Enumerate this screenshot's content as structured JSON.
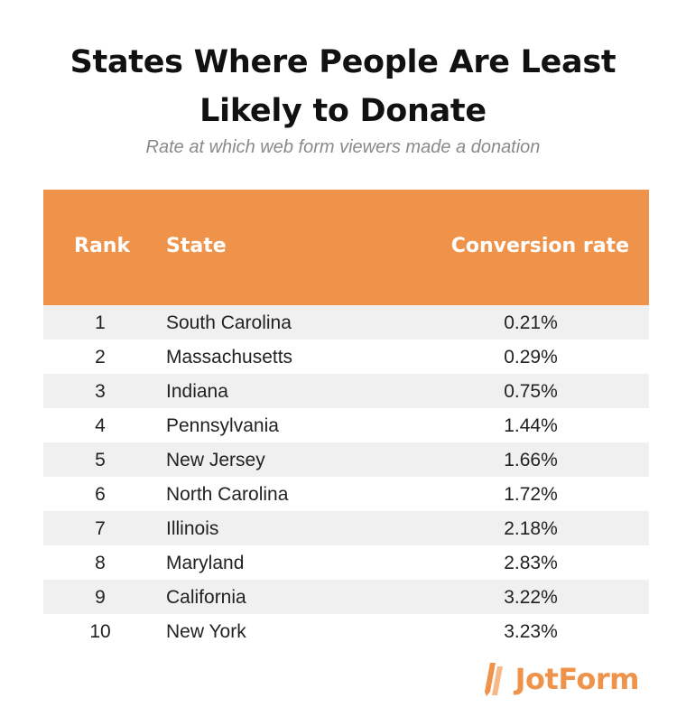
{
  "title_line1": "States Where People Are Least",
  "title_line2": "Likely to Donate",
  "subtitle": "Rate at which web form viewers made a donation",
  "chart_data": {
    "type": "table",
    "columns": [
      "Rank",
      "State",
      "Conversion rate"
    ],
    "rows": [
      {
        "rank": "1",
        "state": "South Carolina",
        "rate": "0.21%"
      },
      {
        "rank": "2",
        "state": "Massachusetts",
        "rate": "0.29%"
      },
      {
        "rank": "3",
        "state": "Indiana",
        "rate": "0.75%"
      },
      {
        "rank": "4",
        "state": "Pennsylvania",
        "rate": "1.44%"
      },
      {
        "rank": "5",
        "state": "New Jersey",
        "rate": "1.66%"
      },
      {
        "rank": "6",
        "state": "North Carolina",
        "rate": "1.72%"
      },
      {
        "rank": "7",
        "state": "Illinois",
        "rate": "2.18%"
      },
      {
        "rank": "8",
        "state": "Maryland",
        "rate": "2.83%"
      },
      {
        "rank": "9",
        "state": "California",
        "rate": "3.22%"
      },
      {
        "rank": "10",
        "state": "New York",
        "rate": "3.23%"
      }
    ]
  },
  "logo": {
    "text": "JotForm",
    "icon": "jotform-pencil-icon"
  },
  "colors": {
    "header": "#f0934a",
    "row_alt": "#f0f0f0",
    "subtitle": "#8a8a8a"
  }
}
